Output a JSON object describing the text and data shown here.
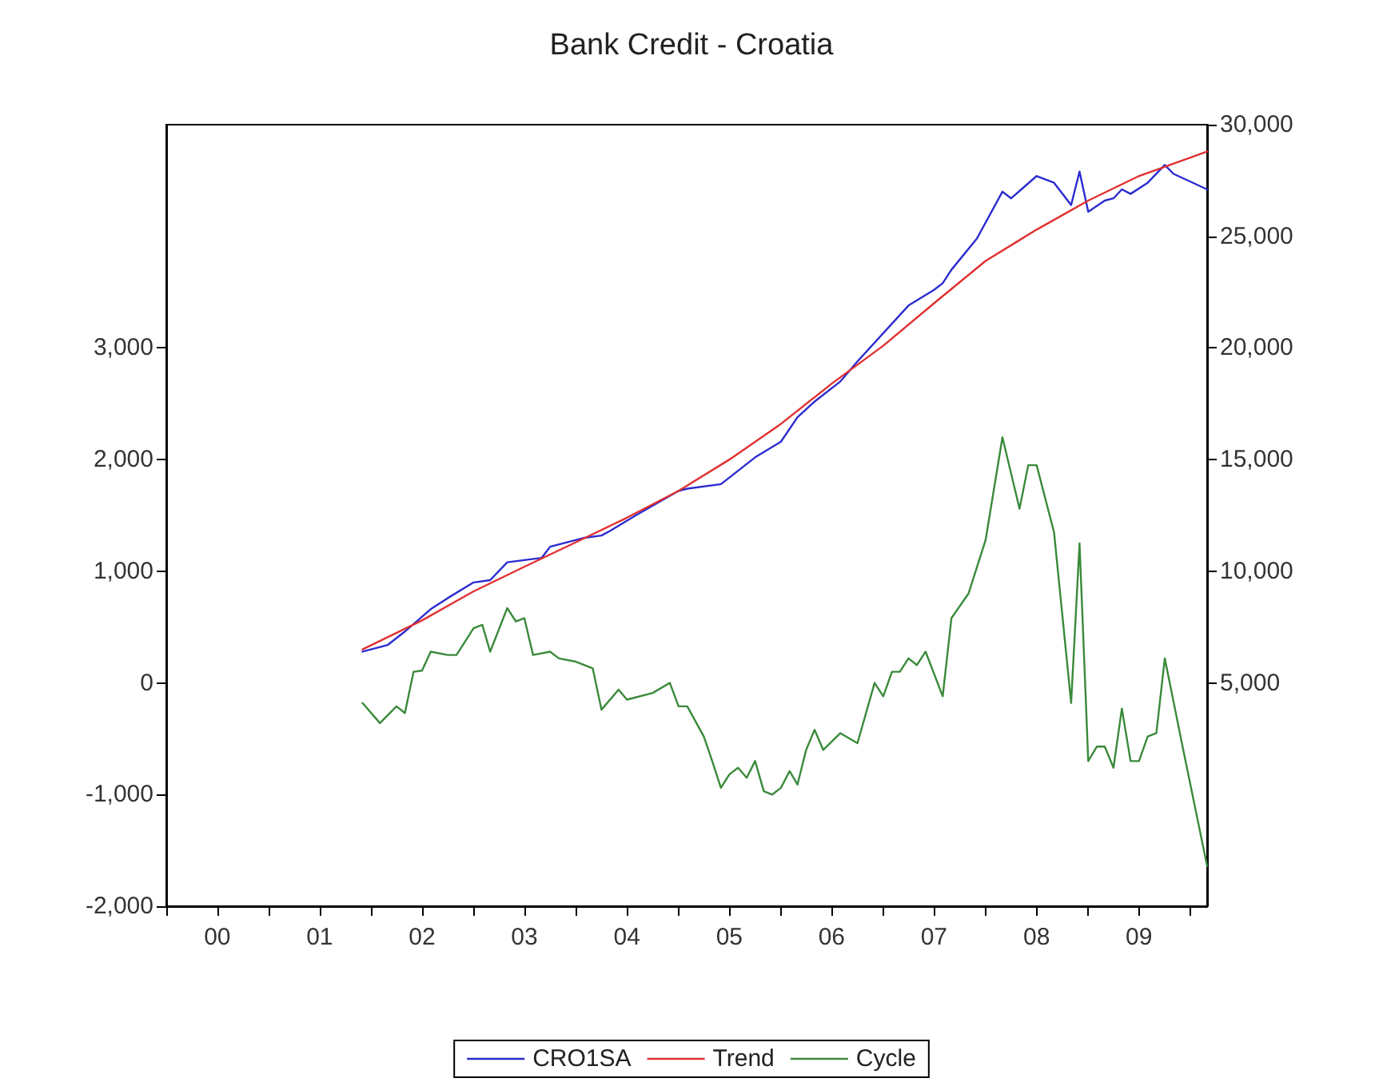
{
  "chart_data": {
    "type": "line",
    "title": "Bank Credit - Croatia",
    "xlim": [
      "2000-01",
      "2010-03"
    ],
    "xticks": [
      {
        "value": "2000-01",
        "label": null
      },
      {
        "value": "2000-07",
        "label": "00"
      },
      {
        "value": "2001-01",
        "label": null
      },
      {
        "value": "2001-07",
        "label": "01"
      },
      {
        "value": "2002-01",
        "label": null
      },
      {
        "value": "2002-07",
        "label": "02"
      },
      {
        "value": "2003-01",
        "label": null
      },
      {
        "value": "2003-07",
        "label": "03"
      },
      {
        "value": "2004-01",
        "label": null
      },
      {
        "value": "2004-07",
        "label": "04"
      },
      {
        "value": "2005-01",
        "label": null
      },
      {
        "value": "2005-07",
        "label": "05"
      },
      {
        "value": "2006-01",
        "label": null
      },
      {
        "value": "2006-07",
        "label": "06"
      },
      {
        "value": "2007-01",
        "label": null
      },
      {
        "value": "2007-07",
        "label": "07"
      },
      {
        "value": "2008-01",
        "label": null
      },
      {
        "value": "2008-07",
        "label": "08"
      },
      {
        "value": "2009-01",
        "label": null
      },
      {
        "value": "2009-07",
        "label": "09"
      },
      {
        "value": "2010-01",
        "label": null
      }
    ],
    "ylim": [
      -2000,
      5000
    ],
    "yticks": [
      {
        "value": -2000,
        "label": "-2,000"
      },
      {
        "value": -1000,
        "label": "-1,000"
      },
      {
        "value": 0,
        "label": "0"
      },
      {
        "value": 1000,
        "label": "1,000"
      },
      {
        "value": 2000,
        "label": "2,000"
      },
      {
        "value": 3000,
        "label": "3,000"
      }
    ],
    "y2lim": [
      -5000,
      30000
    ],
    "y2ticks": [
      {
        "value": 5000,
        "label": "5,000"
      },
      {
        "value": 10000,
        "label": "10,000"
      },
      {
        "value": 15000,
        "label": "15,000"
      },
      {
        "value": 20000,
        "label": "20,000"
      },
      {
        "value": 25000,
        "label": "25,000"
      },
      {
        "value": 30000,
        "label": "30,000"
      }
    ],
    "grid": false,
    "legend": "bottom",
    "marker": "none",
    "line_style": "solid",
    "series": [
      {
        "name": "CRO1SA",
        "color": "#2b2bd0",
        "axis": "y2",
        "x": [
          "2001-12",
          "2002-03",
          "2002-05",
          "2002-08",
          "2002-10",
          "2003-01",
          "2003-03",
          "2003-05",
          "2003-07",
          "2003-09",
          "2003-10",
          "2004-02",
          "2004-04",
          "2004-05",
          "2004-08",
          "2005-01",
          "2005-02",
          "2005-06",
          "2005-08",
          "2005-10",
          "2006-01",
          "2006-03",
          "2006-05",
          "2006-08",
          "2006-10",
          "2007-04",
          "2007-07",
          "2007-08",
          "2007-09",
          "2007-12",
          "2008-03",
          "2008-04",
          "2008-07",
          "2008-09",
          "2008-11",
          "2008-12",
          "2009-01",
          "2009-03",
          "2009-04",
          "2009-05",
          "2009-06",
          "2009-08",
          "2009-10",
          "2009-11",
          "2010-03"
        ],
        "values": [
          6400,
          6700,
          7300,
          8300,
          8800,
          9500,
          9600,
          10400,
          10500,
          10600,
          11100,
          11500,
          11600,
          11800,
          12500,
          13600,
          13700,
          13900,
          14500,
          15100,
          15800,
          16900,
          17600,
          18500,
          19400,
          21900,
          22600,
          22900,
          23500,
          24900,
          27000,
          26700,
          27700,
          27400,
          26400,
          27900,
          26100,
          26600,
          26700,
          27100,
          26900,
          27400,
          28200,
          27800,
          27100
        ]
      },
      {
        "name": "Trend",
        "color": "#e03030",
        "axis": "y2",
        "x": [
          "2001-12",
          "2002-07",
          "2003-01",
          "2003-07",
          "2004-01",
          "2004-07",
          "2005-01",
          "2005-07",
          "2006-01",
          "2006-07",
          "2007-01",
          "2007-07",
          "2008-01",
          "2008-07",
          "2009-01",
          "2009-07",
          "2010-03"
        ],
        "values": [
          6500,
          7800,
          9100,
          10200,
          11300,
          12400,
          13600,
          15000,
          16600,
          18400,
          20100,
          22000,
          23900,
          25300,
          26600,
          27700,
          28800
        ]
      },
      {
        "name": "Cycle",
        "color": "#3a8a3a",
        "axis": "y",
        "x": [
          "2001-12",
          "2002-02",
          "2002-04",
          "2002-05",
          "2002-06",
          "2002-07",
          "2002-08",
          "2002-10",
          "2002-11",
          "2003-01",
          "2003-02",
          "2003-03",
          "2003-05",
          "2003-06",
          "2003-07",
          "2003-08",
          "2003-10",
          "2003-11",
          "2004-01",
          "2004-03",
          "2004-04",
          "2004-06",
          "2004-07",
          "2004-10",
          "2004-12",
          "2005-01",
          "2005-02",
          "2005-04",
          "2005-05",
          "2005-06",
          "2005-07",
          "2005-08",
          "2005-09",
          "2005-10",
          "2005-11",
          "2005-12",
          "2006-01",
          "2006-02",
          "2006-03",
          "2006-04",
          "2006-05",
          "2006-06",
          "2006-08",
          "2006-10",
          "2006-12",
          "2007-01",
          "2007-02",
          "2007-03",
          "2007-04",
          "2007-05",
          "2007-06",
          "2007-08",
          "2007-09",
          "2007-11",
          "2008-01",
          "2008-03",
          "2008-05",
          "2008-06",
          "2008-07",
          "2008-09",
          "2008-11",
          "2008-12",
          "2009-01",
          "2009-02",
          "2009-03",
          "2009-04",
          "2009-05",
          "2009-06",
          "2009-07",
          "2009-08",
          "2009-09",
          "2009-10",
          "2009-12",
          "2010-03"
        ],
        "values": [
          -180,
          -360,
          -210,
          -270,
          100,
          110,
          280,
          250,
          250,
          490,
          520,
          280,
          670,
          550,
          580,
          250,
          280,
          220,
          190,
          130,
          -240,
          -60,
          -150,
          -90,
          0,
          -210,
          -210,
          -480,
          -700,
          -940,
          -820,
          -760,
          -850,
          -700,
          -970,
          -1000,
          -940,
          -790,
          -910,
          -600,
          -420,
          -600,
          -450,
          -540,
          0,
          -120,
          100,
          100,
          220,
          160,
          280,
          -120,
          580,
          800,
          1280,
          2200,
          1560,
          1950,
          1950,
          1350,
          -180,
          1250,
          -700,
          -570,
          -570,
          -760,
          -230,
          -700,
          -700,
          -480,
          -450,
          220,
          -540,
          -1640
        ]
      }
    ]
  }
}
